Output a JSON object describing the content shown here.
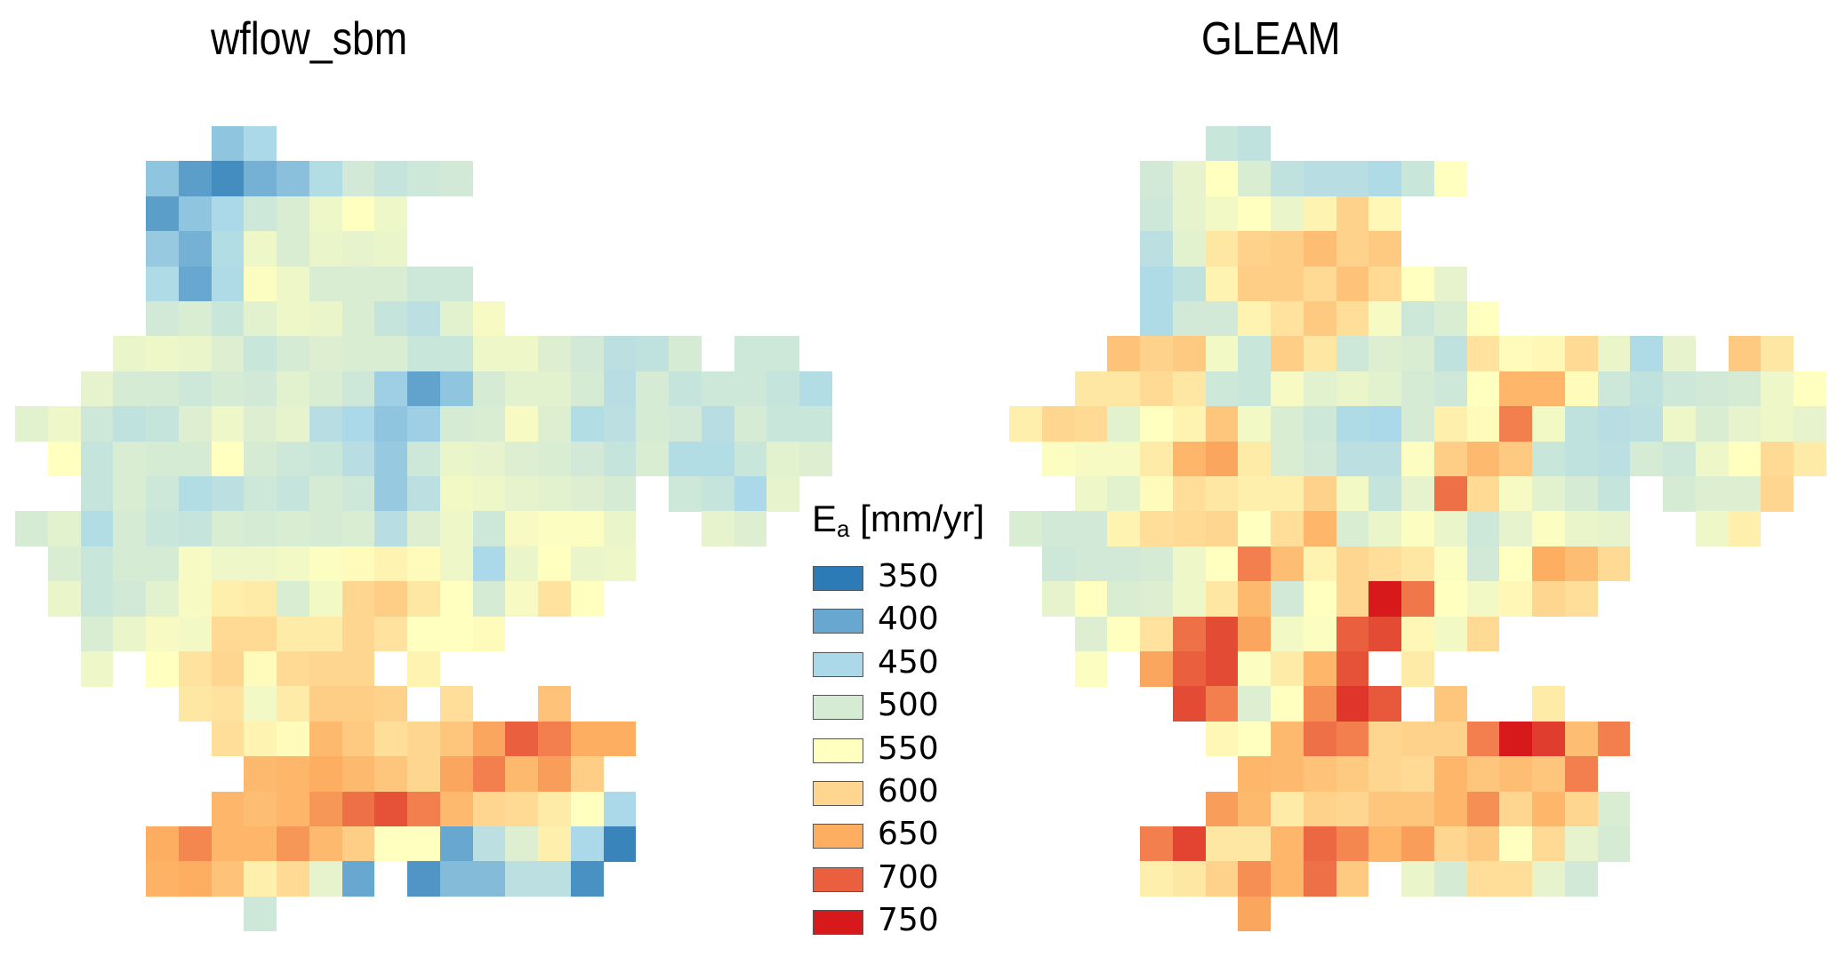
{
  "chart_data": {
    "type": "heatmap",
    "title_left": "wflow_sbm",
    "title_right": "GLEAM",
    "legend_title_main": "E",
    "legend_title_sub": "a",
    "legend_title_unit": " [mm/yr]",
    "legend_placement": "center",
    "legend": [
      {
        "value": "350",
        "color": "#2c7bb6"
      },
      {
        "value": "400",
        "color": "#68a7cf"
      },
      {
        "value": "450",
        "color": "#abd9e9"
      },
      {
        "value": "500",
        "color": "#d5ebd4"
      },
      {
        "value": "550",
        "color": "#ffffbf"
      },
      {
        "value": "600",
        "color": "#fed690"
      },
      {
        "value": "650",
        "color": "#fdae61"
      },
      {
        "value": "700",
        "color": "#ea603f"
      },
      {
        "value": "750",
        "color": "#d7191c"
      }
    ],
    "grid_note": "each row: [start column index, values mm/yr, null = no data]",
    "maps": [
      {
        "name": "wflow_sbm",
        "rows": [
          [
            6,
            [
              430,
              450
            ]
          ],
          [
            4,
            [
              430,
              390,
              370,
              410,
              425,
              460,
              495,
              480,
              490,
              495
            ]
          ],
          [
            4,
            [
              390,
              430,
              450,
              490,
              505,
              530,
              550,
              530
            ]
          ],
          [
            4,
            [
              435,
              410,
              460,
              530,
              505,
              525,
              520,
              525
            ]
          ],
          [
            4,
            [
              455,
              400,
              455,
              545,
              530,
              505,
              505,
              505,
              490,
              490
            ]
          ],
          [
            4,
            [
              495,
              505,
              485,
              515,
              530,
              525,
              505,
              480,
              470,
              515,
              540
            ]
          ],
          [
            3,
            [
              525,
              530,
              525,
              510,
              485,
              500,
              510,
              505,
              505,
              485,
              485,
              530,
              530,
              510,
              495,
              470,
              475,
              500,
              null,
              490,
              490
            ]
          ],
          [
            2,
            [
              520,
              500,
              500,
              490,
              500,
              495,
              515,
              505,
              490,
              440,
              395,
              430,
              500,
              515,
              515,
              500,
              465,
              500,
              480,
              490,
              490,
              480,
              460
            ]
          ],
          [
            0,
            [
              515,
              530,
              490,
              475,
              480,
              510,
              530,
              510,
              520,
              465,
              450,
              430,
              440,
              500,
              505,
              540,
              510,
              460,
              470,
              500,
              495,
              465,
              500,
              485,
              485
            ]
          ],
          [
            1,
            [
              550,
              480,
              505,
              500,
              500,
              550,
              500,
              490,
              485,
              465,
              435,
              490,
              525,
              520,
              510,
              505,
              495,
              480,
              505,
              460,
              460,
              485,
              515,
              510
            ]
          ],
          [
            2,
            [
              480,
              505,
              490,
              460,
              470,
              490,
              480,
              500,
              490,
              435,
              470,
              535,
              530,
              520,
              515,
              510,
              500,
              null,
              490,
              480,
              450,
              520
            ]
          ],
          [
            0,
            [
              500,
              515,
              460,
              500,
              485,
              480,
              505,
              500,
              505,
              500,
              505,
              465,
              510,
              530,
              490,
              540,
              545,
              545,
              525,
              null,
              null,
              520,
              510
            ]
          ],
          [
            1,
            [
              505,
              485,
              500,
              500,
              540,
              530,
              530,
              535,
              545,
              555,
              565,
              555,
              530,
              450,
              525,
              550,
              525,
              530
            ]
          ],
          [
            1,
            [
              525,
              485,
              495,
              515,
              540,
              570,
              575,
              505,
              535,
              600,
              610,
              580,
              550,
              500,
              540,
              585,
              550
            ]
          ],
          [
            2,
            [
              505,
              525,
              540,
              535,
              595,
              595,
              575,
              575,
              600,
              585,
              550,
              550,
              555
            ]
          ],
          [
            2,
            [
              530,
              null,
              550,
              585,
              600,
              555,
              595,
              600,
              600,
              null,
              565
            ]
          ],
          [
            5,
            [
              580,
              585,
              535,
              575,
              610,
              610,
              605,
              null,
              590,
              null,
              null,
              625
            ]
          ],
          [
            6,
            [
              590,
              565,
              555,
              635,
              615,
              590,
              600,
              620,
              655,
              700,
              680,
              650,
              650
            ]
          ],
          [
            7,
            [
              635,
              640,
              650,
              635,
              620,
              600,
              655,
              680,
              635,
              660,
              610
            ]
          ],
          [
            6,
            [
              640,
              630,
              640,
              665,
              690,
              710,
              680,
              635,
              600,
              595,
              575,
              550,
              450
            ]
          ],
          [
            4,
            [
              650,
              675,
              640,
              640,
              665,
              635,
              610,
              550,
              550,
              400,
              470,
              510,
              570,
              450,
              360
            ]
          ],
          [
            4,
            [
              645,
              650,
              625,
              570,
              595,
              520,
              400,
              null,
              380,
              420,
              420,
              470,
              470,
              375
            ]
          ],
          [
            7,
            [
              490
            ]
          ]
        ]
      },
      {
        "name": "GLEAM",
        "rows": [
          [
            6,
            [
              485,
              475
            ]
          ],
          [
            4,
            [
              495,
              520,
              550,
              505,
              475,
              465,
              465,
              455,
              485,
              550
            ]
          ],
          [
            4,
            [
              490,
              520,
              535,
              550,
              525,
              565,
              605,
              560
            ]
          ],
          [
            4,
            [
              470,
              515,
              580,
              605,
              610,
              630,
              605,
              615
            ]
          ],
          [
            4,
            [
              455,
              475,
              565,
              610,
              610,
              595,
              625,
              595,
              550,
              520
            ]
          ],
          [
            4,
            [
              455,
              495,
              495,
              565,
              585,
              615,
              590,
              540,
              490,
              505,
              550
            ]
          ],
          [
            3,
            [
              625,
              605,
              615,
              535,
              485,
              610,
              580,
              490,
              510,
              505,
              475,
              585,
              555,
              560,
              595,
              525,
              455,
              520,
              null,
              615,
              580
            ]
          ],
          [
            2,
            [
              580,
              580,
              595,
              580,
              490,
              485,
              540,
              515,
              525,
              515,
              500,
              490,
              550,
              640,
              640,
              555,
              490,
              475,
              490,
              495,
              500,
              530,
              550
            ]
          ],
          [
            0,
            [
              570,
              600,
              595,
              515,
              550,
              565,
              620,
              535,
              505,
              490,
              455,
              450,
              500,
              570,
              555,
              680,
              535,
              475,
              465,
              470,
              530,
              505,
              520,
              530,
              520
            ]
          ],
          [
            1,
            [
              545,
              540,
              540,
              575,
              640,
              655,
              575,
              505,
              495,
              470,
              470,
              545,
              610,
              635,
              615,
              485,
              475,
              470,
              500,
              490,
              530,
              550,
              595,
              575
            ]
          ],
          [
            2,
            [
              530,
              515,
              555,
              590,
              580,
              570,
              570,
              605,
              535,
              480,
              520,
              690,
              595,
              540,
              515,
              500,
              480,
              null,
              500,
              510,
              510,
              600
            ]
          ],
          [
            0,
            [
              505,
              495,
              495,
              565,
              590,
              595,
              600,
              550,
              590,
              640,
              505,
              525,
              545,
              525,
              490,
              520,
              545,
              525,
              520,
              null,
              null,
              530,
              570
            ]
          ],
          [
            1,
            [
              490,
              495,
              495,
              500,
              530,
              550,
              680,
              630,
              565,
              600,
              590,
              580,
              545,
              495,
              550,
              650,
              630,
              595
            ]
          ],
          [
            1,
            [
              520,
              550,
              505,
              510,
              530,
              580,
              635,
              495,
              550,
              600,
              750,
              685,
              550,
              535,
              560,
              600,
              590
            ]
          ],
          [
            2,
            [
              510,
              550,
              585,
              690,
              715,
              655,
              535,
              545,
              700,
              715,
              560,
              535,
              595
            ]
          ],
          [
            2,
            [
              545,
              null,
              655,
              700,
              715,
              545,
              575,
              640,
              710,
              null,
              575
            ]
          ],
          [
            5,
            [
              715,
              680,
              510,
              550,
              670,
              730,
              705,
              null,
              620,
              null,
              null,
              575
            ]
          ],
          [
            6,
            [
              560,
              550,
              635,
              690,
              680,
              600,
              605,
              605,
              680,
              750,
              725,
              630,
              680
            ]
          ],
          [
            7,
            [
              640,
              635,
              625,
              615,
              600,
              595,
              640,
              620,
              630,
              620,
              680
            ]
          ],
          [
            6,
            [
              660,
              635,
              575,
              605,
              600,
              620,
              620,
              640,
              670,
              600,
              640,
              600,
              505
            ]
          ],
          [
            4,
            [
              680,
              720,
              580,
              580,
              640,
              695,
              675,
              640,
              660,
              600,
              615,
              550,
              595,
              520,
              500
            ]
          ],
          [
            4,
            [
              570,
              580,
              605,
              670,
              640,
              690,
              615,
              null,
              525,
              500,
              590,
              590,
              520,
              495
            ]
          ],
          [
            7,
            [
              655
            ]
          ]
        ]
      }
    ]
  }
}
